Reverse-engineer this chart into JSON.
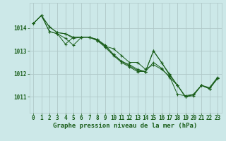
{
  "bg_color": "#cce8e8",
  "grid_color": "#b0c8c8",
  "line_color": "#1a5e1a",
  "marker_color": "#1a5e1a",
  "title": "Graphe pression niveau de la mer (hPa)",
  "title_fontsize": 6.5,
  "tick_fontsize": 5.5,
  "xlim": [
    -0.5,
    23.5
  ],
  "ylim": [
    1010.3,
    1015.1
  ],
  "yticks": [
    1011,
    1012,
    1013,
    1014
  ],
  "xticks": [
    0,
    1,
    2,
    3,
    4,
    5,
    6,
    7,
    8,
    9,
    10,
    11,
    12,
    13,
    14,
    15,
    16,
    17,
    18,
    19,
    20,
    21,
    22,
    23
  ],
  "series": [
    [
      1014.2,
      1014.55,
      1013.85,
      1013.75,
      1013.55,
      1013.25,
      1013.6,
      1013.6,
      1013.45,
      1013.2,
      1012.85,
      1012.55,
      1012.35,
      1012.15,
      1012.1,
      1013.0,
      1012.5,
      1011.95,
      1011.5,
      1011.0,
      1011.05,
      1011.5,
      1011.35,
      1011.8
    ],
    [
      1014.2,
      1014.55,
      1013.85,
      1013.75,
      1013.3,
      1013.6,
      1013.6,
      1013.6,
      1013.45,
      1013.15,
      1012.8,
      1012.5,
      1012.3,
      1012.1,
      1012.1,
      1012.5,
      1012.25,
      1011.85,
      1011.5,
      1011.0,
      1011.1,
      1011.5,
      1011.35,
      1011.8
    ],
    [
      1014.2,
      1014.55,
      1014.05,
      1013.8,
      1013.75,
      1013.55,
      1013.6,
      1013.6,
      1013.5,
      1013.25,
      1012.85,
      1012.55,
      1012.4,
      1012.2,
      1012.1,
      1013.0,
      1012.5,
      1012.0,
      1011.5,
      1011.0,
      1011.1,
      1011.5,
      1011.35,
      1011.8
    ],
    [
      1014.2,
      1014.55,
      1014.05,
      1013.8,
      1013.75,
      1013.6,
      1013.6,
      1013.6,
      1013.5,
      1013.2,
      1013.1,
      1012.8,
      1012.5,
      1012.5,
      1012.2,
      1012.4,
      1012.2,
      1011.9,
      1011.1,
      1011.05,
      1011.1,
      1011.5,
      1011.4,
      1011.85
    ]
  ]
}
